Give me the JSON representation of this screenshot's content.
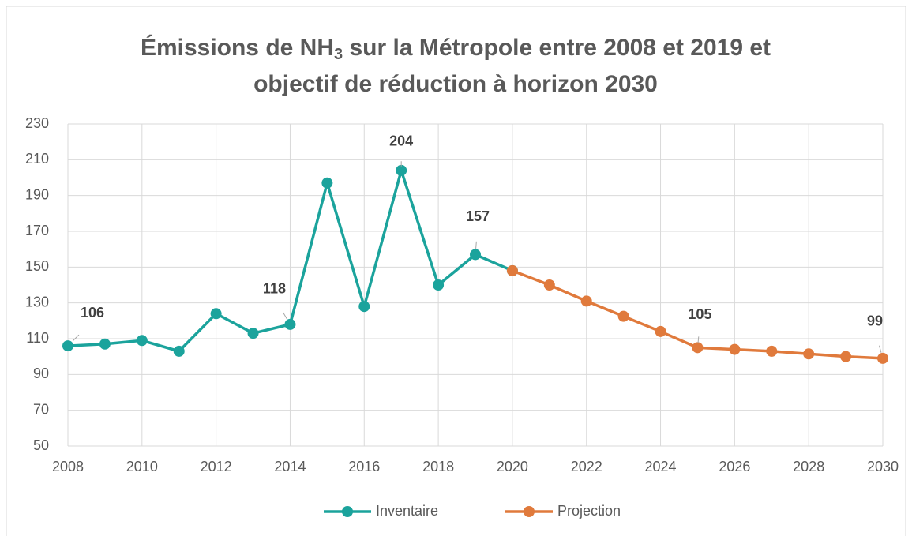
{
  "chart_data": {
    "type": "line",
    "title": [
      "Émissions de NH",
      "3",
      " sur la Métropole entre 2008 et 2019 et",
      "objectif de réduction à horizon 2030"
    ],
    "x": [
      2008,
      2009,
      2010,
      2011,
      2012,
      2013,
      2014,
      2015,
      2016,
      2017,
      2018,
      2019,
      2020,
      2021,
      2022,
      2023,
      2024,
      2025,
      2026,
      2027,
      2028,
      2029,
      2030
    ],
    "series": [
      {
        "name": "Inventaire",
        "color": "#1ba39c",
        "values": [
          106,
          107,
          109,
          103,
          124,
          113,
          118,
          197,
          128,
          204,
          140,
          157,
          148,
          null,
          null,
          null,
          null,
          null,
          null,
          null,
          null,
          null,
          null
        ],
        "labeled_points": [
          0,
          6,
          9,
          11
        ]
      },
      {
        "name": "Projection",
        "color": "#e07a3c",
        "values": [
          null,
          null,
          null,
          null,
          null,
          null,
          null,
          null,
          null,
          null,
          null,
          null,
          148,
          140,
          131,
          122.5,
          114,
          105,
          104,
          103,
          101.5,
          100,
          99
        ],
        "labeled_points": [
          17,
          22
        ]
      }
    ],
    "xlim": [
      2008,
      2030
    ],
    "xticks": [
      2008,
      2010,
      2012,
      2014,
      2016,
      2018,
      2020,
      2022,
      2024,
      2026,
      2028,
      2030
    ],
    "ylim": [
      50,
      230
    ],
    "yticks": [
      50,
      70,
      90,
      110,
      130,
      150,
      170,
      190,
      210,
      230
    ],
    "grid": true,
    "legend": "bottom"
  }
}
